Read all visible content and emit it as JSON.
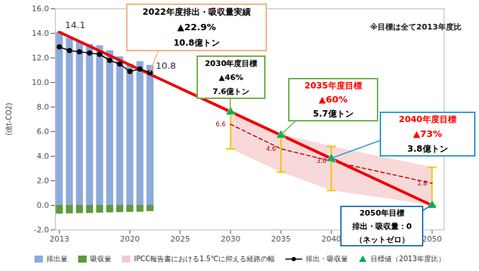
{
  "chart_data": {
    "type": "combo",
    "y_label": "(億t-CO2)",
    "xlim": [
      2012.6,
      2051.2
    ],
    "xticks": [
      2013,
      2020,
      2025,
      2030,
      2035,
      2040,
      2050
    ],
    "ylim": [
      -2,
      16
    ],
    "yticks": [
      {
        "value": -2,
        "label": "-2.0"
      },
      {
        "value": 0,
        "label": "0.0"
      },
      {
        "value": 2,
        "label": "2.0"
      },
      {
        "value": 4,
        "label": "4.0"
      },
      {
        "value": 6,
        "label": "6.0"
      },
      {
        "value": 8,
        "label": "8.0"
      },
      {
        "value": 10,
        "label": "10.0"
      },
      {
        "value": 12,
        "label": "12.0"
      },
      {
        "value": 14,
        "label": "14.0"
      },
      {
        "value": 16,
        "label": "16.0"
      }
    ],
    "grid": false,
    "note": "※目標は全て2013年度比",
    "series": [
      {
        "name": "排出量",
        "type": "bar",
        "color": "#8eaadb",
        "x": [
          2013,
          2014,
          2015,
          2016,
          2017,
          2018,
          2019,
          2020,
          2021,
          2022
        ],
        "values": [
          14.1,
          13.6,
          13.35,
          13.1,
          13.0,
          12.6,
          12.1,
          11.5,
          11.7,
          11.4
        ]
      },
      {
        "name": "吸収量",
        "type": "bar",
        "color": "#5b9b3c",
        "x": [
          2013,
          2014,
          2015,
          2016,
          2017,
          2018,
          2019,
          2020,
          2021,
          2022
        ],
        "values": [
          -0.7,
          -0.68,
          -0.66,
          -0.65,
          -0.62,
          -0.6,
          -0.58,
          -0.56,
          -0.55,
          -0.5
        ]
      },
      {
        "name": "IPCC報告書における1.5℃に抑える経路の幅",
        "type": "band",
        "color": "#f4cccc",
        "x": [
          2030,
          2035,
          2040,
          2050
        ],
        "lower": [
          4.6,
          2.7,
          1.2,
          0.0
        ],
        "upper": [
          7.6,
          5.8,
          4.8,
          3.1
        ]
      },
      {
        "type": "errorbar",
        "color": "#f5c400",
        "x": [
          2030,
          2035,
          2040,
          2050
        ],
        "low": [
          4.6,
          2.7,
          1.2,
          0.0
        ],
        "high": [
          7.6,
          5.8,
          4.8,
          3.1
        ]
      },
      {
        "type": "line",
        "color": "#c00000",
        "line_style": "dashed",
        "data_labels": true,
        "x": [
          2030,
          2035,
          2040,
          2050
        ],
        "values": [
          6.6,
          4.6,
          3.6,
          1.8
        ]
      },
      {
        "type": "line",
        "color": "#ee0000",
        "line_style": "solid",
        "x": [
          2013,
          2050
        ],
        "values": [
          14.1,
          0
        ]
      },
      {
        "name": "排出・吸収量",
        "type": "line",
        "color": "#000000",
        "marker": "circle",
        "line_style": "solid",
        "x": [
          2013,
          2014,
          2015,
          2016,
          2017,
          2018,
          2019,
          2020,
          2021,
          2022
        ],
        "values": [
          12.9,
          12.6,
          12.5,
          12.4,
          12.3,
          11.8,
          11.5,
          10.9,
          11.1,
          10.8
        ]
      },
      {
        "name": "目標値（2013年度比）",
        "type": "scatter",
        "color": "#00b050",
        "marker": "triangle",
        "x": [
          2030,
          2035,
          2040,
          2050
        ],
        "values": [
          7.6,
          5.7,
          3.8,
          0
        ]
      }
    ],
    "annotations": [
      {
        "x": 2013,
        "y": 14.1,
        "text": "14.1"
      },
      {
        "x": 2022,
        "y": 10.8,
        "text": "10.8"
      }
    ],
    "callouts": [
      {
        "x": 2022,
        "y": 10.8,
        "color": "#f4b183",
        "lines": [
          {
            "text": "2022年度排出・吸収量実績"
          },
          {
            "text": "▲22.9%"
          },
          {
            "text": "10.8億トン"
          }
        ]
      },
      {
        "x": 2030,
        "y": 7.6,
        "color": "#70ad47",
        "lines": [
          {
            "text": "2030年度目標"
          },
          {
            "text": "▲46%"
          },
          {
            "text": "7.6億トン"
          }
        ]
      },
      {
        "x": 2035,
        "y": 5.7,
        "color": "#70ad47",
        "lines": [
          {
            "text": "2035年度目標",
            "color": "#ff0000"
          },
          {
            "text": "▲60%",
            "color": "#ff0000"
          },
          {
            "text": "5.7億トン"
          }
        ]
      },
      {
        "x": 2040,
        "y": 3.8,
        "color": "#2e9bd6",
        "lines": [
          {
            "text": "2040年度目標",
            "color": "#ff0000"
          },
          {
            "text": "▲73%",
            "color": "#ff0000"
          },
          {
            "text": "3.8億トン"
          }
        ]
      },
      {
        "x": 2050,
        "y": 0,
        "color": "#2e75b6",
        "lines": [
          {
            "text": "2050年目標"
          },
          {
            "text": "排出・吸収量：0"
          },
          {
            "text": "（ネットゼロ）"
          }
        ]
      }
    ]
  }
}
